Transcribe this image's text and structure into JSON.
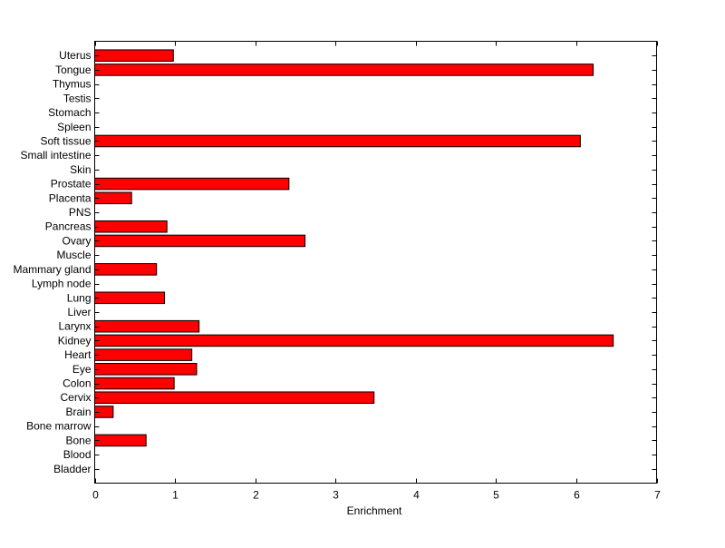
{
  "chart_data": {
    "type": "bar",
    "orientation": "horizontal",
    "title": "",
    "xlabel": "Enrichment",
    "ylabel": "",
    "xlim": [
      0,
      7
    ],
    "xticks": [
      0,
      1,
      2,
      3,
      4,
      5,
      6,
      7
    ],
    "grid": false,
    "bar_color": "#ff0000",
    "bar_edge_color": "#000000",
    "categories": [
      "Bladder",
      "Blood",
      "Bone",
      "Bone marrow",
      "Brain",
      "Cervix",
      "Colon",
      "Eye",
      "Heart",
      "Kidney",
      "Larynx",
      "Liver",
      "Lung",
      "Lymph node",
      "Mammary gland",
      "Muscle",
      "Ovary",
      "Pancreas",
      "PNS",
      "Placenta",
      "Prostate",
      "Skin",
      "Small intestine",
      "Soft tissue",
      "Spleen",
      "Stomach",
      "Testis",
      "Thymus",
      "Tongue",
      "Uterus"
    ],
    "values": [
      0,
      0,
      0.64,
      0,
      0.23,
      3.48,
      0.99,
      1.27,
      1.21,
      6.46,
      1.3,
      0,
      0.87,
      0,
      0.77,
      0,
      2.62,
      0.9,
      0,
      0.46,
      2.42,
      0,
      0,
      6.05,
      0,
      0,
      0,
      0,
      6.21,
      0.98
    ]
  }
}
